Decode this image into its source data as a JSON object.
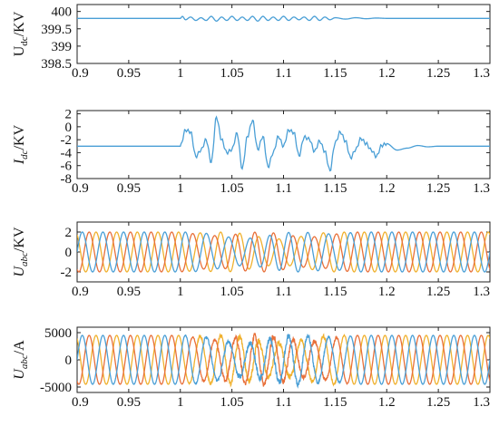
{
  "chart_data": [
    {
      "type": "line",
      "ylabel": {
        "main": "U",
        "sub": "dc",
        "unit": "/KV",
        "italic": false
      },
      "xlim": [
        0.9,
        1.3
      ],
      "ylim": [
        398.5,
        400.2
      ],
      "xticks": [
        "0.9",
        "0.95",
        "1",
        "1.05",
        "1.1",
        "1.15",
        "1.2",
        "1.25",
        "1.3"
      ],
      "yticks": [
        "398.5",
        "399",
        "399.5",
        "400"
      ],
      "series": [
        {
          "color": "#4a9fd6",
          "x": [
            0.9,
            1.0,
            1.002,
            1.005,
            1.01,
            1.015,
            1.02,
            1.025,
            1.03,
            1.035,
            1.04,
            1.045,
            1.05,
            1.055,
            1.06,
            1.065,
            1.07,
            1.075,
            1.08,
            1.085,
            1.09,
            1.095,
            1.1,
            1.105,
            1.11,
            1.115,
            1.12,
            1.125,
            1.13,
            1.135,
            1.14,
            1.145,
            1.15,
            1.16,
            1.17,
            1.18,
            1.19,
            1.2,
            1.22,
            1.3
          ],
          "y": [
            399.8,
            399.8,
            399.86,
            399.76,
            399.84,
            399.74,
            399.82,
            399.74,
            399.86,
            399.72,
            399.84,
            399.74,
            399.86,
            399.74,
            399.84,
            399.74,
            399.86,
            399.72,
            399.86,
            399.74,
            399.84,
            399.74,
            399.86,
            399.74,
            399.84,
            399.76,
            399.84,
            399.74,
            399.86,
            399.74,
            399.84,
            399.76,
            399.82,
            399.78,
            399.82,
            399.79,
            399.81,
            399.8,
            399.8,
            399.8
          ]
        }
      ]
    },
    {
      "type": "line",
      "ylabel": {
        "main": "I",
        "sub": "dc",
        "unit": "/KV",
        "italic": true
      },
      "xlim": [
        0.9,
        1.3
      ],
      "ylim": [
        -8,
        2.5
      ],
      "xticks": [
        "0.9",
        "0.95",
        "1",
        "1.05",
        "1.1",
        "1.15",
        "1.2",
        "1.25",
        "1.3"
      ],
      "yticks": [
        "2",
        "0",
        "-2",
        "-4",
        "-6",
        "-8"
      ],
      "series": [
        {
          "color": "#4a9fd6",
          "x": [
            0.9,
            1.0,
            1.005,
            1.01,
            1.015,
            1.02,
            1.025,
            1.03,
            1.035,
            1.04,
            1.045,
            1.05,
            1.055,
            1.06,
            1.065,
            1.07,
            1.075,
            1.08,
            1.085,
            1.09,
            1.095,
            1.1,
            1.105,
            1.11,
            1.115,
            1.12,
            1.125,
            1.13,
            1.135,
            1.14,
            1.145,
            1.15,
            1.155,
            1.16,
            1.165,
            1.17,
            1.175,
            1.18,
            1.185,
            1.19,
            1.195,
            1.2,
            1.21,
            1.22,
            1.23,
            1.24,
            1.25,
            1.3
          ],
          "y": [
            -3,
            -3,
            -0.5,
            -0.8,
            -4.6,
            -3.6,
            -2,
            -5.5,
            1.5,
            -2,
            -4,
            -3.5,
            -1,
            -6.5,
            -1.5,
            1,
            -3.5,
            -1.5,
            -6.2,
            -4,
            -1.5,
            -3,
            -0.5,
            -0.9,
            -4.5,
            -1.6,
            -1.9,
            -3.8,
            -2.2,
            -3.8,
            -6.8,
            -2.5,
            -0.8,
            -2.2,
            -4.8,
            -3.5,
            -1.8,
            -2.6,
            -3.6,
            -4.6,
            -2.9,
            -2.6,
            -3.6,
            -3.3,
            -2.9,
            -3.1,
            -3,
            -3
          ]
        }
      ]
    },
    {
      "type": "line",
      "ylabel": {
        "main": "U",
        "sub": "abc",
        "unit": "/KV",
        "italic": true
      },
      "xlim": [
        0.9,
        1.3
      ],
      "ylim": [
        -3,
        3
      ],
      "xticks": [
        "0.9",
        "0.95",
        "1",
        "1.05",
        "1.1",
        "1.15",
        "1.2",
        "1.25",
        "1.3"
      ],
      "yticks": [
        "2",
        "0",
        "-2"
      ],
      "waveform": {
        "frequency": 50,
        "amplitude": 2,
        "phase_colors": [
          "#4a9fd6",
          "#e8703a",
          "#f0b12e"
        ]
      }
    },
    {
      "type": "line",
      "ylabel": {
        "main": "U",
        "sub": "abc",
        "unit": "/A",
        "italic": true
      },
      "xlim": [
        0.9,
        1.3
      ],
      "ylim": [
        -6000,
        6000
      ],
      "xticks": [
        "0.9",
        "0.95",
        "1",
        "1.05",
        "1.1",
        "1.15",
        "1.2",
        "1.25",
        "1.3"
      ],
      "yticks": [
        "5000",
        "0",
        "-5000"
      ],
      "waveform": {
        "frequency": 50,
        "amplitude": 4500,
        "phase_colors": [
          "#4a9fd6",
          "#e8703a",
          "#f0b12e"
        ]
      }
    }
  ]
}
